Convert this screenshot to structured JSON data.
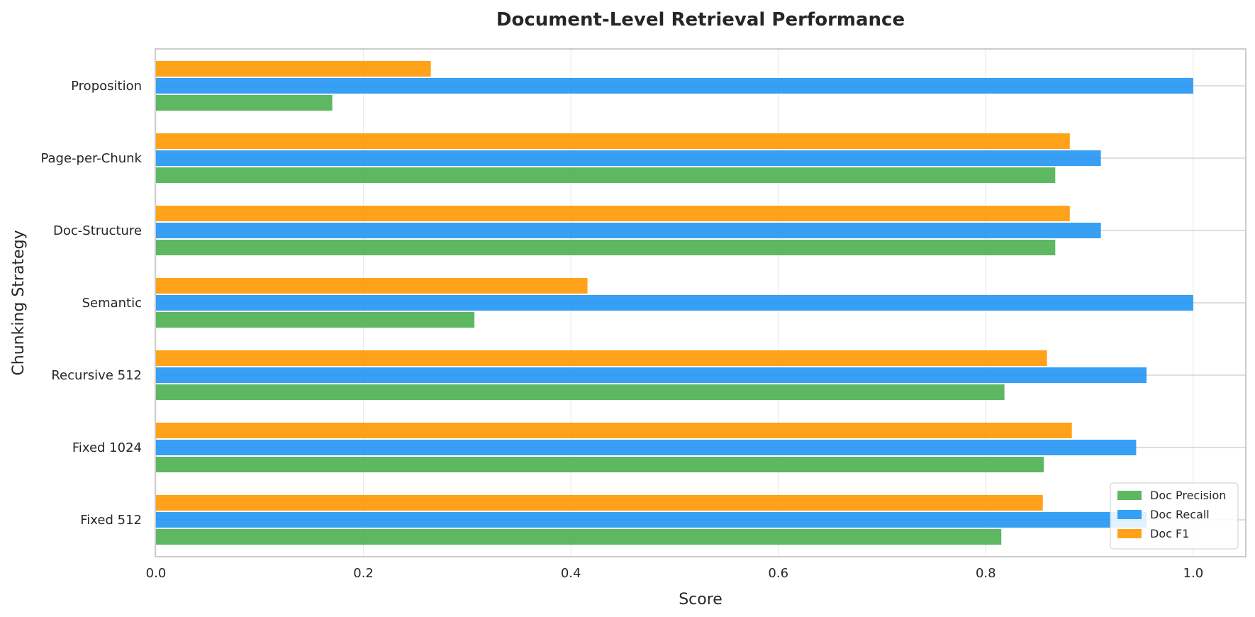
{
  "chart_data": {
    "type": "bar",
    "orientation": "horizontal",
    "title": "Document-Level Retrieval Performance",
    "xlabel": "Score",
    "ylabel": "Chunking Strategy",
    "xlim": [
      0,
      1.05
    ],
    "xticks": [
      "0.0",
      "0.2",
      "0.4",
      "0.6",
      "0.8",
      "1.0"
    ],
    "grid": true,
    "legend_position": "bottom-right",
    "categories": [
      "Fixed 512",
      "Fixed 1024",
      "Recursive 512",
      "Semantic",
      "Doc-Structure",
      "Page-per-Chunk",
      "Proposition"
    ],
    "series": [
      {
        "name": "Doc Precision",
        "color": "#4caf50",
        "values": [
          0.815,
          0.856,
          0.818,
          0.307,
          0.867,
          0.867,
          0.17
        ]
      },
      {
        "name": "Doc Recall",
        "color": "#2196f3",
        "values": [
          0.955,
          0.945,
          0.955,
          1.0,
          0.911,
          0.911,
          1.0
        ]
      },
      {
        "name": "Doc F1",
        "color": "#ff9800",
        "values": [
          0.855,
          0.883,
          0.859,
          0.416,
          0.881,
          0.881,
          0.265
        ]
      }
    ]
  }
}
